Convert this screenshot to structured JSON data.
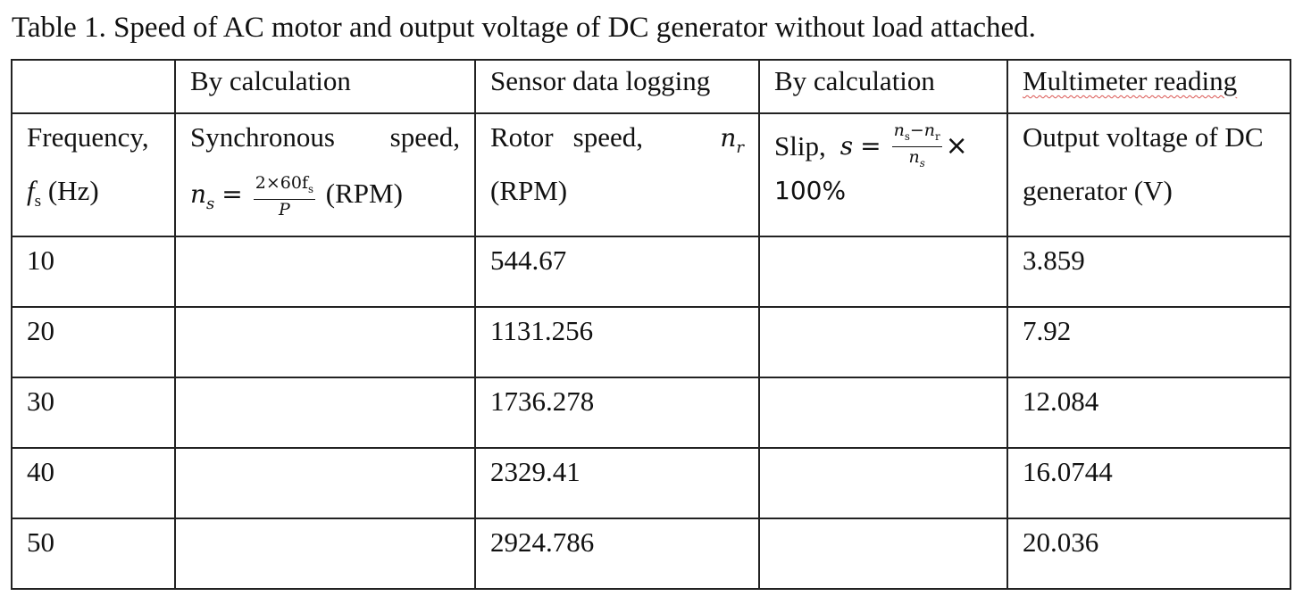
{
  "caption": "Table 1. Speed of AC motor and output voltage of DC generator without load attached.",
  "group_headers": [
    "",
    "By calculation",
    "Sensor data logging",
    "By calculation",
    "Multimeter reading"
  ],
  "col1": {
    "line1": "Frequency,",
    "symbol": "f",
    "sub": "s",
    "unit": "(Hz)"
  },
  "col2": {
    "line1_left": "Synchronous",
    "line1_right": "speed,",
    "symbol": "n",
    "sub": "s",
    "eq": "=",
    "frac_num": "2×60f",
    "frac_num_sub": "s",
    "frac_den": "P",
    "unit": "(RPM)"
  },
  "col3": {
    "line1_left": "Rotor",
    "line1_mid": "speed,",
    "symbol": "n",
    "sub": "r",
    "line2": "(RPM)"
  },
  "col4": {
    "line1_left": "Slip,",
    "symbol": "s",
    "eq": "=",
    "frac_num_a": "n",
    "frac_num_a_sub": "s",
    "frac_num_op": "−",
    "frac_num_b": "n",
    "frac_num_b_sub": "r",
    "frac_den": "n",
    "frac_den_sub": "s",
    "times": "×",
    "line2": "100%"
  },
  "col5": {
    "line1": "Output voltage of DC",
    "line2": "generator (V)"
  },
  "rows": [
    {
      "frequency": "10",
      "sync_speed": "",
      "rotor_speed": "544.67",
      "slip": "",
      "voltage": "3.859"
    },
    {
      "frequency": "20",
      "sync_speed": "",
      "rotor_speed": "1131.256",
      "slip": "",
      "voltage": "7.92"
    },
    {
      "frequency": "30",
      "sync_speed": "",
      "rotor_speed": "1736.278",
      "slip": "",
      "voltage": "12.084"
    },
    {
      "frequency": "40",
      "sync_speed": "",
      "rotor_speed": "2329.41",
      "slip": "",
      "voltage": "16.0744"
    },
    {
      "frequency": "50",
      "sync_speed": "",
      "rotor_speed": "2924.786",
      "slip": "",
      "voltage": "20.036"
    }
  ]
}
